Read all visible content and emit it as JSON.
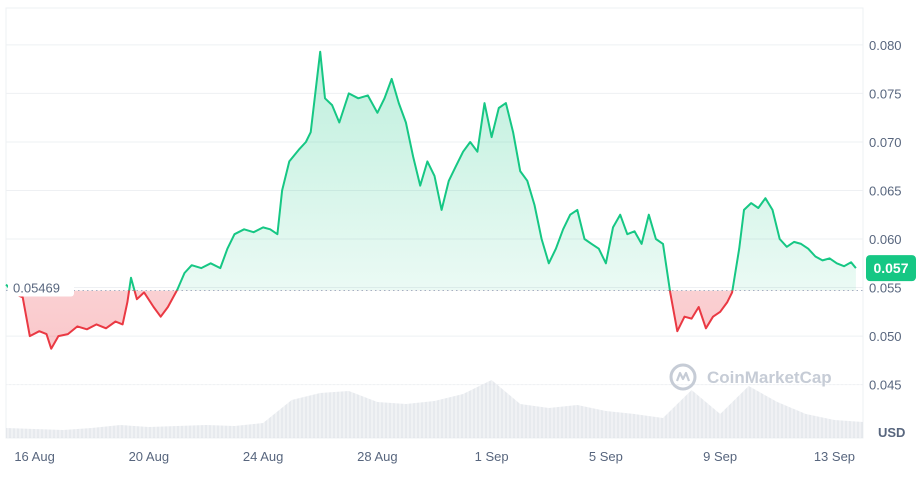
{
  "chart_data": {
    "type": "area",
    "currency_label": "USD",
    "watermark": "CoinMarketCap",
    "baseline": {
      "value": 0.05469,
      "label": "0.05469"
    },
    "current": {
      "value": 0.057,
      "label": "0.057"
    },
    "ylim": [
      0.0395,
      0.0838
    ],
    "y_ticks": [
      {
        "value": 0.08,
        "label": "0.080"
      },
      {
        "value": 0.075,
        "label": "0.075"
      },
      {
        "value": 0.07,
        "label": "0.070"
      },
      {
        "value": 0.065,
        "label": "0.065"
      },
      {
        "value": 0.06,
        "label": "0.060"
      },
      {
        "value": 0.055,
        "label": "0.055"
      },
      {
        "value": 0.05,
        "label": "0.050"
      },
      {
        "value": 0.045,
        "label": "0.045"
      }
    ],
    "x_range": [
      "2023-08-15",
      "2023-09-14"
    ],
    "x_ticks": [
      {
        "date": "2023-08-16",
        "label": "16 Aug"
      },
      {
        "date": "2023-08-20",
        "label": "20 Aug"
      },
      {
        "date": "2023-08-24",
        "label": "24 Aug"
      },
      {
        "date": "2023-08-28",
        "label": "28 Aug"
      },
      {
        "date": "2023-09-01",
        "label": "1 Sep"
      },
      {
        "date": "2023-09-05",
        "label": "5 Sep"
      },
      {
        "date": "2023-09-09",
        "label": "9 Sep"
      },
      {
        "date": "2023-09-13",
        "label": "13 Sep"
      }
    ],
    "colors": {
      "up": "#16c784",
      "down": "#ea3943",
      "volume": "#dfe3e8",
      "grid": "#eef0f3",
      "text": "#58667e"
    },
    "series": [
      {
        "points": [
          [
            "2023-08-15 00:00",
            0.0553
          ],
          [
            "2023-08-15 08:00",
            0.0543
          ],
          [
            "2023-08-15 14:00",
            0.054
          ],
          [
            "2023-08-15 20:00",
            0.05
          ],
          [
            "2023-08-16 04:00",
            0.0505
          ],
          [
            "2023-08-16 10:00",
            0.0502
          ],
          [
            "2023-08-16 14:00",
            0.0487
          ],
          [
            "2023-08-16 20:00",
            0.05
          ],
          [
            "2023-08-17 04:00",
            0.0502
          ],
          [
            "2023-08-17 12:00",
            0.051
          ],
          [
            "2023-08-17 20:00",
            0.0507
          ],
          [
            "2023-08-18 04:00",
            0.0512
          ],
          [
            "2023-08-18 12:00",
            0.0508
          ],
          [
            "2023-08-18 20:00",
            0.0515
          ],
          [
            "2023-08-19 02:00",
            0.0512
          ],
          [
            "2023-08-19 06:00",
            0.0535
          ],
          [
            "2023-08-19 09:00",
            0.056
          ],
          [
            "2023-08-19 14:00",
            0.0538
          ],
          [
            "2023-08-19 20:00",
            0.0545
          ],
          [
            "2023-08-20 04:00",
            0.053
          ],
          [
            "2023-08-20 10:00",
            0.052
          ],
          [
            "2023-08-20 16:00",
            0.053
          ],
          [
            "2023-08-21 00:00",
            0.0548
          ],
          [
            "2023-08-21 06:00",
            0.0565
          ],
          [
            "2023-08-21 12:00",
            0.0573
          ],
          [
            "2023-08-21 20:00",
            0.057
          ],
          [
            "2023-08-22 04:00",
            0.0575
          ],
          [
            "2023-08-22 12:00",
            0.057
          ],
          [
            "2023-08-22 18:00",
            0.059
          ],
          [
            "2023-08-23 00:00",
            0.0605
          ],
          [
            "2023-08-23 08:00",
            0.061
          ],
          [
            "2023-08-23 16:00",
            0.0607
          ],
          [
            "2023-08-24 00:00",
            0.0612
          ],
          [
            "2023-08-24 06:00",
            0.061
          ],
          [
            "2023-08-24 12:00",
            0.0605
          ],
          [
            "2023-08-24 16:00",
            0.065
          ],
          [
            "2023-08-24 22:00",
            0.068
          ],
          [
            "2023-08-25 06:00",
            0.0692
          ],
          [
            "2023-08-25 12:00",
            0.07
          ],
          [
            "2023-08-25 16:00",
            0.071
          ],
          [
            "2023-08-25 20:00",
            0.0752
          ],
          [
            "2023-08-26 00:00",
            0.0793
          ],
          [
            "2023-08-26 04:00",
            0.0745
          ],
          [
            "2023-08-26 10:00",
            0.0738
          ],
          [
            "2023-08-26 16:00",
            0.072
          ],
          [
            "2023-08-27 00:00",
            0.075
          ],
          [
            "2023-08-27 08:00",
            0.0745
          ],
          [
            "2023-08-27 16:00",
            0.0748
          ],
          [
            "2023-08-28 00:00",
            0.073
          ],
          [
            "2023-08-28 06:00",
            0.0745
          ],
          [
            "2023-08-28 12:00",
            0.0765
          ],
          [
            "2023-08-28 18:00",
            0.074
          ],
          [
            "2023-08-29 00:00",
            0.072
          ],
          [
            "2023-08-29 06:00",
            0.0685
          ],
          [
            "2023-08-29 12:00",
            0.0655
          ],
          [
            "2023-08-29 18:00",
            0.068
          ],
          [
            "2023-08-30 00:00",
            0.0665
          ],
          [
            "2023-08-30 06:00",
            0.063
          ],
          [
            "2023-08-30 12:00",
            0.066
          ],
          [
            "2023-08-30 18:00",
            0.0675
          ],
          [
            "2023-08-31 00:00",
            0.069
          ],
          [
            "2023-08-31 06:00",
            0.07
          ],
          [
            "2023-08-31 12:00",
            0.069
          ],
          [
            "2023-08-31 18:00",
            0.074
          ],
          [
            "2023-09-01 00:00",
            0.0705
          ],
          [
            "2023-09-01 06:00",
            0.0735
          ],
          [
            "2023-09-01 12:00",
            0.074
          ],
          [
            "2023-09-01 18:00",
            0.071
          ],
          [
            "2023-09-02 00:00",
            0.067
          ],
          [
            "2023-09-02 06:00",
            0.066
          ],
          [
            "2023-09-02 12:00",
            0.0635
          ],
          [
            "2023-09-02 18:00",
            0.06
          ],
          [
            "2023-09-03 00:00",
            0.0575
          ],
          [
            "2023-09-03 06:00",
            0.059
          ],
          [
            "2023-09-03 12:00",
            0.061
          ],
          [
            "2023-09-03 18:00",
            0.0625
          ],
          [
            "2023-09-04 00:00",
            0.063
          ],
          [
            "2023-09-04 06:00",
            0.06
          ],
          [
            "2023-09-04 12:00",
            0.0595
          ],
          [
            "2023-09-04 18:00",
            0.059
          ],
          [
            "2023-09-05 00:00",
            0.0575
          ],
          [
            "2023-09-05 06:00",
            0.0612
          ],
          [
            "2023-09-05 12:00",
            0.0625
          ],
          [
            "2023-09-05 18:00",
            0.0605
          ],
          [
            "2023-09-06 00:00",
            0.0608
          ],
          [
            "2023-09-06 06:00",
            0.0595
          ],
          [
            "2023-09-06 12:00",
            0.0625
          ],
          [
            "2023-09-06 18:00",
            0.06
          ],
          [
            "2023-09-07 00:00",
            0.0595
          ],
          [
            "2023-09-07 06:00",
            0.0545
          ],
          [
            "2023-09-07 12:00",
            0.0505
          ],
          [
            "2023-09-07 18:00",
            0.052
          ],
          [
            "2023-09-08 00:00",
            0.0518
          ],
          [
            "2023-09-08 06:00",
            0.053
          ],
          [
            "2023-09-08 12:00",
            0.0508
          ],
          [
            "2023-09-08 18:00",
            0.052
          ],
          [
            "2023-09-09 00:00",
            0.0525
          ],
          [
            "2023-09-09 06:00",
            0.0535
          ],
          [
            "2023-09-09 10:00",
            0.0545
          ],
          [
            "2023-09-09 16:00",
            0.059
          ],
          [
            "2023-09-09 20:00",
            0.063
          ],
          [
            "2023-09-10 02:00",
            0.0637
          ],
          [
            "2023-09-10 08:00",
            0.0632
          ],
          [
            "2023-09-10 14:00",
            0.0642
          ],
          [
            "2023-09-10 20:00",
            0.063
          ],
          [
            "2023-09-11 02:00",
            0.06
          ],
          [
            "2023-09-11 08:00",
            0.0592
          ],
          [
            "2023-09-11 14:00",
            0.0597
          ],
          [
            "2023-09-11 20:00",
            0.0595
          ],
          [
            "2023-09-12 02:00",
            0.059
          ],
          [
            "2023-09-12 08:00",
            0.0582
          ],
          [
            "2023-09-12 14:00",
            0.0578
          ],
          [
            "2023-09-12 20:00",
            0.058
          ],
          [
            "2023-09-13 02:00",
            0.0575
          ],
          [
            "2023-09-13 08:00",
            0.0572
          ],
          [
            "2023-09-13 14:00",
            0.0576
          ],
          [
            "2023-09-13 18:00",
            0.057
          ]
        ]
      }
    ],
    "volume": [
      [
        "2023-08-15 00:00",
        10
      ],
      [
        "2023-08-16 00:00",
        9
      ],
      [
        "2023-08-17 00:00",
        8
      ],
      [
        "2023-08-18 00:00",
        10
      ],
      [
        "2023-08-19 00:00",
        13
      ],
      [
        "2023-08-20 00:00",
        11
      ],
      [
        "2023-08-21 00:00",
        12
      ],
      [
        "2023-08-22 00:00",
        13
      ],
      [
        "2023-08-23 00:00",
        12
      ],
      [
        "2023-08-24 00:00",
        15
      ],
      [
        "2023-08-25 00:00",
        38
      ],
      [
        "2023-08-26 00:00",
        45
      ],
      [
        "2023-08-27 00:00",
        47
      ],
      [
        "2023-08-28 00:00",
        36
      ],
      [
        "2023-08-29 00:00",
        34
      ],
      [
        "2023-08-30 00:00",
        37
      ],
      [
        "2023-08-31 00:00",
        44
      ],
      [
        "2023-09-01 00:00",
        58
      ],
      [
        "2023-09-02 00:00",
        34
      ],
      [
        "2023-09-03 00:00",
        30
      ],
      [
        "2023-09-04 00:00",
        33
      ],
      [
        "2023-09-05 00:00",
        27
      ],
      [
        "2023-09-06 00:00",
        24
      ],
      [
        "2023-09-07 00:00",
        20
      ],
      [
        "2023-09-08 00:00",
        48
      ],
      [
        "2023-09-09 00:00",
        24
      ],
      [
        "2023-09-10 00:00",
        52
      ],
      [
        "2023-09-11 00:00",
        36
      ],
      [
        "2023-09-12 00:00",
        24
      ],
      [
        "2023-09-13 00:00",
        18
      ],
      [
        "2023-09-14 00:00",
        16
      ]
    ]
  }
}
